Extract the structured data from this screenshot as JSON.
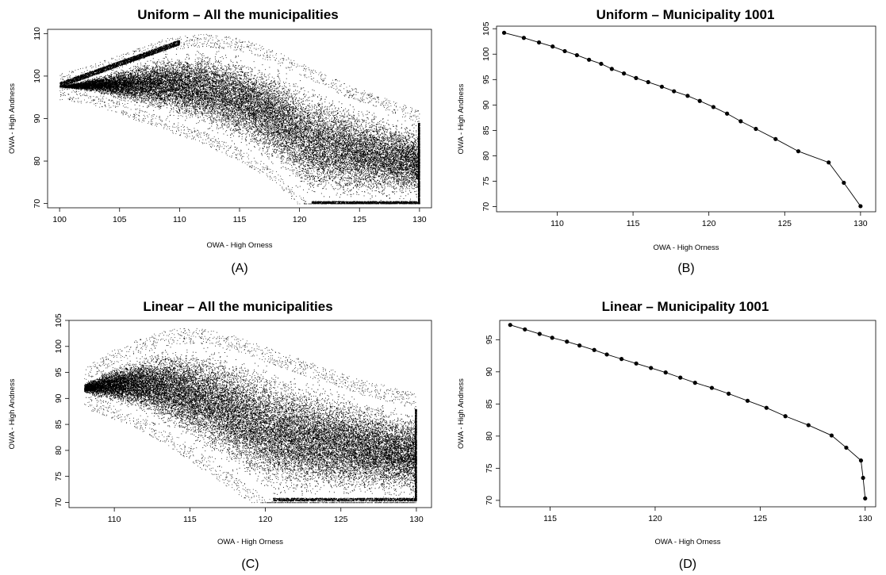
{
  "chart_data": [
    {
      "panel_label": "(A)",
      "type": "scatter",
      "title": "Uniform – All the municipalities",
      "xlabel": "OWA - High Orness",
      "ylabel": "OWA - High Andness",
      "xlim": [
        99,
        131
      ],
      "ylim": [
        69,
        111
      ],
      "xticks": [
        100,
        105,
        110,
        115,
        120,
        125,
        130
      ],
      "yticks": [
        70,
        80,
        90,
        100,
        110
      ],
      "cloud": {
        "upper_edge": [
          [
            100,
            97.5
          ],
          [
            103,
            100
          ],
          [
            106,
            103
          ],
          [
            109,
            106
          ],
          [
            112,
            107
          ],
          [
            115,
            106
          ],
          [
            118,
            103
          ],
          [
            121,
            99
          ],
          [
            124,
            95
          ],
          [
            127,
            92
          ],
          [
            130,
            89
          ]
        ],
        "lower_edge": [
          [
            100,
            97.5
          ],
          [
            103,
            96
          ],
          [
            106,
            93
          ],
          [
            109,
            90
          ],
          [
            112,
            87
          ],
          [
            115,
            83
          ],
          [
            118,
            78
          ],
          [
            120,
            72
          ],
          [
            121,
            70
          ],
          [
            130,
            70
          ]
        ],
        "band": [
          [
            100,
            98
          ],
          [
            110,
            108
          ]
        ],
        "points": 26000
      }
    },
    {
      "panel_label": "(B)",
      "type": "line",
      "title": "Uniform – Municipality 1001",
      "xlabel": "OWA - High Orness",
      "ylabel": "OWA - High Andness",
      "xlim": [
        106,
        131
      ],
      "ylim": [
        69,
        105.5
      ],
      "xticks": [
        110,
        115,
        120,
        125,
        130
      ],
      "yticks": [
        70,
        75,
        80,
        85,
        90,
        95,
        100,
        105
      ],
      "x": [
        106.5,
        107.8,
        108.8,
        109.7,
        110.5,
        111.3,
        112.1,
        112.9,
        113.6,
        114.4,
        115.2,
        116,
        116.9,
        117.7,
        118.6,
        119.4,
        120.3,
        121.2,
        122.1,
        123.1,
        124.4,
        125.9,
        127.9,
        128.9,
        130
      ],
      "y": [
        104.2,
        103.2,
        102.3,
        101.5,
        100.6,
        99.8,
        98.9,
        98.1,
        97.1,
        96.2,
        95.3,
        94.5,
        93.6,
        92.7,
        91.8,
        90.8,
        89.6,
        88.3,
        86.8,
        85.3,
        83.3,
        80.9,
        78.7,
        74.7,
        70.1
      ]
    },
    {
      "panel_label": "(C)",
      "type": "scatter",
      "title": "Linear – All the municipalities",
      "xlabel": "OWA - High Orness",
      "ylabel": "OWA - High Andness",
      "xlim": [
        107,
        131
      ],
      "ylim": [
        69,
        105
      ],
      "xticks": [
        110,
        115,
        120,
        125,
        130
      ],
      "yticks": [
        70,
        75,
        80,
        85,
        90,
        95,
        100,
        105
      ],
      "cloud": {
        "upper_edge": [
          [
            108,
            93
          ],
          [
            110,
            96.5
          ],
          [
            112,
            99
          ],
          [
            114,
            100.5
          ],
          [
            116,
            100.5
          ],
          [
            118,
            99
          ],
          [
            120,
            97
          ],
          [
            122,
            95
          ],
          [
            124,
            93
          ],
          [
            126,
            91
          ],
          [
            128,
            89.5
          ],
          [
            130,
            88
          ]
        ],
        "lower_edge": [
          [
            108,
            91
          ],
          [
            110,
            89
          ],
          [
            112,
            86.5
          ],
          [
            114,
            83
          ],
          [
            116,
            79
          ],
          [
            118,
            75
          ],
          [
            119.5,
            72
          ],
          [
            120.5,
            70.3
          ],
          [
            130,
            70.3
          ]
        ],
        "points": 28000
      }
    },
    {
      "panel_label": "(D)",
      "type": "line",
      "title": "Linear – Municipality 1001",
      "xlabel": "OWA - High Orness",
      "ylabel": "OWA - High Andness",
      "xlim": [
        112.6,
        130.5
      ],
      "ylim": [
        69,
        98
      ],
      "xticks": [
        115,
        120,
        125,
        130
      ],
      "yticks": [
        70,
        75,
        80,
        85,
        90,
        95
      ],
      "x": [
        113.1,
        113.8,
        114.5,
        115.1,
        115.8,
        116.4,
        117.1,
        117.7,
        118.4,
        119.1,
        119.8,
        120.5,
        121.2,
        121.9,
        122.7,
        123.5,
        124.4,
        125.3,
        126.2,
        127.3,
        128.4,
        129.1,
        129.8,
        129.9,
        130
      ],
      "y": [
        97.3,
        96.6,
        95.9,
        95.3,
        94.7,
        94.1,
        93.4,
        92.7,
        92,
        91.3,
        90.6,
        89.9,
        89.1,
        88.3,
        87.5,
        86.6,
        85.5,
        84.4,
        83.1,
        81.7,
        80.1,
        78.2,
        76.2,
        73.5,
        70.3
      ]
    }
  ]
}
